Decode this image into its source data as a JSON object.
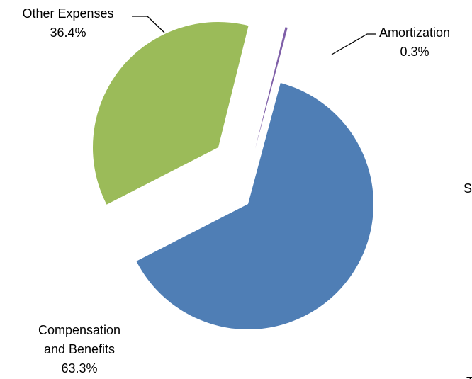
{
  "chart_data": {
    "type": "pie",
    "title": "",
    "slices": [
      {
        "label": "Compensation and Benefits",
        "label_lines": [
          "Compensation",
          "and Benefits"
        ],
        "value": 63.3,
        "value_text": "63.3%",
        "color": "#4f7eb5",
        "slug": "compensation-and-benefits"
      },
      {
        "label": "Other Expenses",
        "label_lines": [
          "Other Expenses"
        ],
        "value": 36.4,
        "value_text": "36.4%",
        "color": "#9bbb59",
        "slug": "other-expenses"
      },
      {
        "label": "Amortization",
        "label_lines": [
          "Amortization"
        ],
        "value": 0.3,
        "value_text": "0.3%",
        "color": "#7f5fa8",
        "slug": "amortization"
      }
    ],
    "cut_off_text": {
      "right_edge_letter": "S",
      "bottom_edge_fragment": "T"
    }
  }
}
